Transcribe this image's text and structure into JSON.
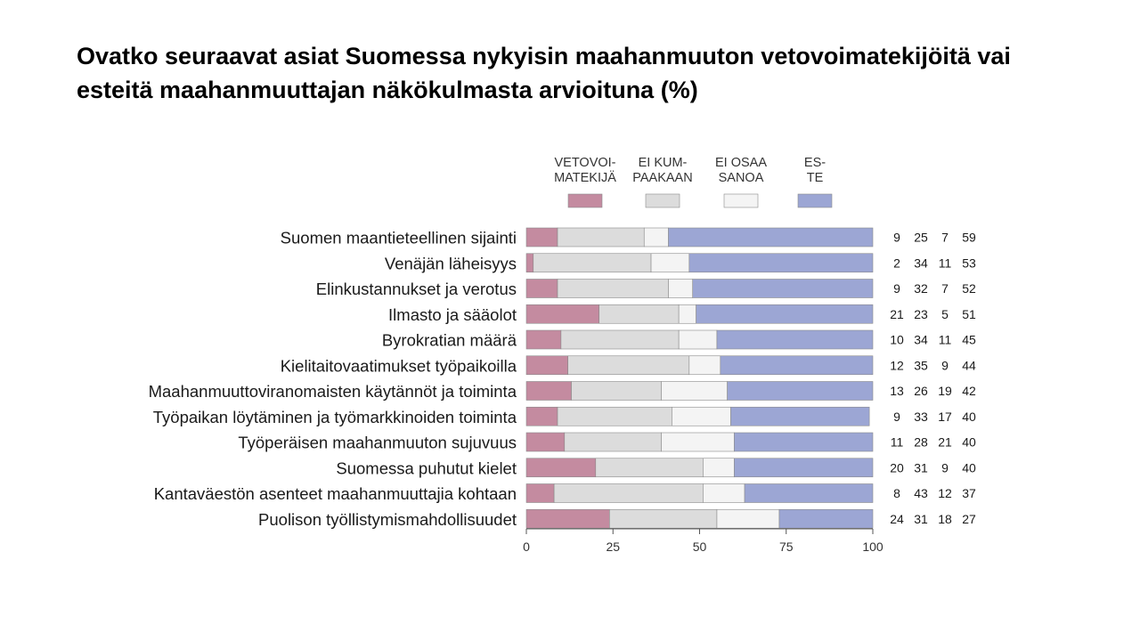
{
  "slide": {
    "title": "Ovatko seuraavat asiat Suomessa nykyisin maahanmuuton vetovoimatekijöitä vai esteitä maahanmuuttajan näkökulmasta arvioituna (%)"
  },
  "chart_data": {
    "type": "bar",
    "orientation": "horizontal",
    "stacked": true,
    "categories": [
      "Suomen maantieteellinen sijainti",
      "Venäjän läheisyys",
      "Elinkustannukset ja verotus",
      "Ilmasto ja sääolot",
      "Byrokratian määrä",
      "Kielitaitovaatimukset työpaikoilla",
      "Maahanmuuttoviranomaisten käytännöt ja toiminta",
      "Työpaikan löytäminen ja työmarkkinoiden toiminta",
      "Työperäisen maahanmuuton sujuvuus",
      "Suomessa puhutut kielet",
      "Kantaväestön asenteet maahanmuuttajia kohtaan",
      "Puolison työllistymismahdollisuudet"
    ],
    "series": [
      {
        "name": "VETOVOIMATEKIJÄ",
        "legend_lines": [
          "VETOVOI-",
          "MATEKIJÄ"
        ],
        "color": "#c48ba0",
        "values": [
          9,
          2,
          9,
          21,
          10,
          12,
          13,
          9,
          11,
          20,
          8,
          24
        ]
      },
      {
        "name": "EI KUMPAAKAAN",
        "legend_lines": [
          "EI KUM-",
          "PAAKAAN"
        ],
        "color": "#dcdcdc",
        "values": [
          25,
          34,
          32,
          23,
          34,
          35,
          26,
          33,
          28,
          31,
          43,
          31
        ]
      },
      {
        "name": "EI OSAA SANOA",
        "legend_lines": [
          "EI OSAA",
          "SANOA"
        ],
        "color": "#f4f4f4",
        "values": [
          7,
          11,
          7,
          5,
          11,
          9,
          19,
          17,
          21,
          9,
          12,
          18
        ]
      },
      {
        "name": "ESTE",
        "legend_lines": [
          "ES-",
          "TE"
        ],
        "color": "#9ca6d4",
        "values": [
          59,
          53,
          52,
          51,
          45,
          44,
          42,
          40,
          40,
          40,
          37,
          27
        ]
      }
    ],
    "xlim": [
      0,
      100
    ],
    "x_ticks": [
      0,
      25,
      50,
      75,
      100
    ],
    "legend_position": "top",
    "value_labels_position": "right",
    "grid": false
  }
}
